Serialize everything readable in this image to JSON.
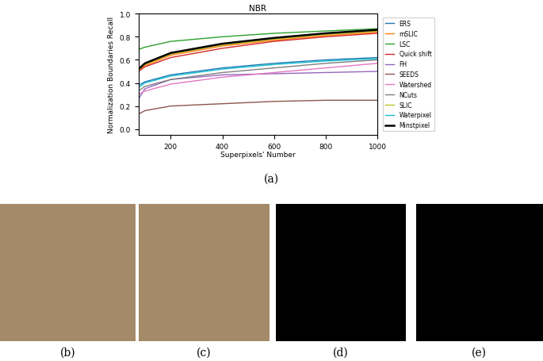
{
  "chart_data": {
    "type": "line",
    "title": "NBR",
    "x_label": "Superpixels' Number",
    "y_label": "Normalization Boundaries Recall",
    "x": [
      75,
      100,
      200,
      400,
      600,
      800,
      1000
    ],
    "xlim": [
      75,
      1000
    ],
    "xticks": [
      200,
      400,
      600,
      800,
      1000
    ],
    "ylim": [
      -0.05,
      1.0
    ],
    "yticks": [
      {
        "value": 0.0,
        "label": "0.0"
      },
      {
        "value": 0.2,
        "label": "0.2"
      },
      {
        "value": 0.4,
        "label": "0.4"
      },
      {
        "value": 0.6,
        "label": "0.6"
      },
      {
        "value": 0.8,
        "label": "0.8"
      },
      {
        "value": 1.0,
        "label": "1.0"
      }
    ],
    "legend": "center left",
    "series": [
      {
        "name": "ERS",
        "color": "#1f77b4",
        "values": [
          0.38,
          0.41,
          0.47,
          0.53,
          0.57,
          0.6,
          0.62
        ]
      },
      {
        "name": "mSLIC",
        "color": "#ff7f0e",
        "values": [
          0.5,
          0.55,
          0.64,
          0.72,
          0.77,
          0.81,
          0.84
        ]
      },
      {
        "name": "LSC",
        "color": "#2ca02c",
        "values": [
          0.69,
          0.71,
          0.76,
          0.8,
          0.83,
          0.85,
          0.87
        ]
      },
      {
        "name": "Quick shift",
        "color": "#d62728",
        "values": [
          0.5,
          0.54,
          0.62,
          0.7,
          0.76,
          0.8,
          0.83
        ]
      },
      {
        "name": "FH",
        "color": "#9467bd",
        "values": [
          0.26,
          0.35,
          0.43,
          0.47,
          0.48,
          0.49,
          0.5
        ]
      },
      {
        "name": "SEEDS",
        "color": "#8c564b",
        "values": [
          0.13,
          0.16,
          0.2,
          0.22,
          0.24,
          0.25,
          0.25
        ]
      },
      {
        "name": "Watershed",
        "color": "#e377c2",
        "values": [
          0.3,
          0.33,
          0.39,
          0.45,
          0.49,
          0.53,
          0.57
        ]
      },
      {
        "name": "NCuts",
        "color": "#7f7f7f",
        "values": [
          0.33,
          0.37,
          0.43,
          0.49,
          0.53,
          0.57,
          0.6
        ]
      },
      {
        "name": "SLIC",
        "color": "#bcbd22",
        "values": [
          0.51,
          0.56,
          0.65,
          0.73,
          0.78,
          0.82,
          0.85
        ]
      },
      {
        "name": "Waterpixel",
        "color": "#17becf",
        "values": [
          0.36,
          0.4,
          0.46,
          0.52,
          0.56,
          0.59,
          0.61
        ]
      },
      {
        "name": "Minstpixel",
        "color": "#000000",
        "values": [
          0.52,
          0.57,
          0.66,
          0.74,
          0.79,
          0.83,
          0.86
        ]
      }
    ]
  },
  "panels": {
    "captions": [
      "(a)",
      "(b)",
      "(c)",
      "(d)",
      "(e)"
    ]
  }
}
